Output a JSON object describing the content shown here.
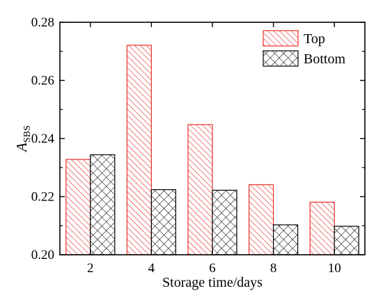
{
  "chart_data": {
    "type": "bar",
    "title": "",
    "xlabel": "Storage time/days",
    "ylabel": {
      "main": "A",
      "subscript": "SBS"
    },
    "categories": [
      "2",
      "4",
      "6",
      "8",
      "10"
    ],
    "ylim": [
      0.2,
      0.28
    ],
    "yticks": [
      "0.20",
      "0.22",
      "0.24",
      "0.26",
      "0.28"
    ],
    "legend": {
      "position": "top-right"
    },
    "grid": false,
    "series": [
      {
        "name": "Top",
        "values": [
          0.2328,
          0.2721,
          0.2448,
          0.2241,
          0.2181
        ],
        "color": "#e8302c",
        "pattern": "diagonal-hatch"
      },
      {
        "name": "Bottom",
        "values": [
          0.2344,
          0.2224,
          0.2222,
          0.2103,
          0.2098
        ],
        "color": "#000000",
        "pattern": "crosshatch"
      }
    ]
  }
}
